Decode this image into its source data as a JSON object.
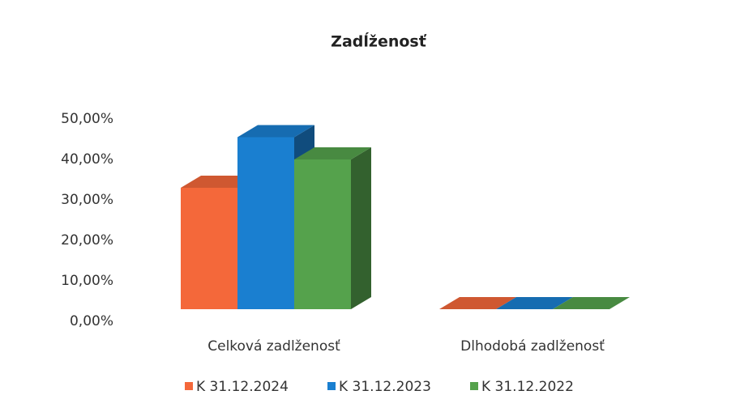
{
  "chart_data": {
    "type": "bar3d",
    "title": "Zadĺženosť",
    "categories": [
      "Celková zadlženosť",
      "Dlhodobá zadlženosť"
    ],
    "series": [
      {
        "name": "K 31.12.2024",
        "color": "#f4683a",
        "values": [
          30,
          0
        ]
      },
      {
        "name": "K 31.12.2023",
        "color": "#1a7fd0",
        "values": [
          42.5,
          0
        ]
      },
      {
        "name": "K 31.12.2022",
        "color": "#55a24c",
        "values": [
          37,
          0
        ]
      }
    ],
    "ylim": [
      0,
      50
    ],
    "yticks": [
      {
        "value": 0,
        "label": "0,00%"
      },
      {
        "value": 10,
        "label": "10,00%"
      },
      {
        "value": 20,
        "label": "20,00%"
      },
      {
        "value": 30,
        "label": "30,00%"
      },
      {
        "value": 40,
        "label": "40,00%"
      },
      {
        "value": 50,
        "label": "50,00%"
      }
    ],
    "legend": "bottom"
  }
}
